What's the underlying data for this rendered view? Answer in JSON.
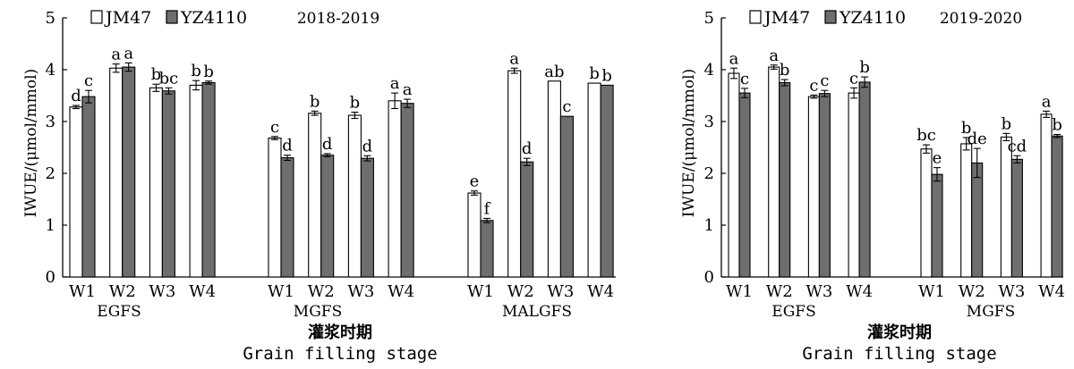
{
  "colors": {
    "jm47": "#ffffff",
    "yz4110": "#6e6e6e",
    "axis": "#000000"
  },
  "chart_data": [
    {
      "type": "bar",
      "title": "2018-2019",
      "ylabel": "IWUE/(μmol/mmol)",
      "xlabel_cn": "灌浆时期",
      "xlabel_en": "Grain filling stage",
      "ylim": [
        0,
        5
      ],
      "yticks": [
        "0",
        "1",
        "2",
        "3",
        "4",
        "5"
      ],
      "legend": [
        "JM47",
        "YZ4110"
      ],
      "groups": [
        {
          "name": "EGFS",
          "categories": [
            "W1",
            "W2",
            "W3",
            "W4"
          ],
          "JM47": [
            3.28,
            4.03,
            3.65,
            3.7
          ],
          "YZ4110": [
            3.48,
            4.05,
            3.59,
            3.75
          ],
          "JM47_err": [
            0.03,
            0.08,
            0.07,
            0.09
          ],
          "YZ4110_err": [
            0.12,
            0.08,
            0.06,
            0.03
          ],
          "JM47_sig": [
            "d",
            "a",
            "b",
            "b"
          ],
          "YZ4110_sig": [
            "c",
            "a",
            "bc",
            "b"
          ]
        },
        {
          "name": "MGFS",
          "categories": [
            "W1",
            "W2",
            "W3",
            "W4"
          ],
          "JM47": [
            2.68,
            3.16,
            3.12,
            3.4
          ],
          "YZ4110": [
            2.3,
            2.35,
            2.29,
            3.35
          ],
          "JM47_err": [
            0.03,
            0.04,
            0.06,
            0.15
          ],
          "YZ4110_err": [
            0.05,
            0.03,
            0.05,
            0.08
          ],
          "JM47_sig": [
            "c",
            "b",
            "b",
            "a"
          ],
          "YZ4110_sig": [
            "d",
            "d",
            "d",
            "a"
          ]
        },
        {
          "name": "MALGFS",
          "categories": [
            "W1",
            "W2",
            "W3",
            "W4"
          ],
          "JM47": [
            1.62,
            3.98,
            3.78,
            3.74
          ],
          "YZ4110": [
            1.09,
            2.22,
            3.1,
            3.7
          ],
          "JM47_err": [
            0.04,
            0.05,
            0.0,
            0.0
          ],
          "YZ4110_err": [
            0.04,
            0.07,
            0.0,
            0.0
          ],
          "JM47_sig": [
            "e",
            "a",
            "ab",
            "b"
          ],
          "YZ4110_sig": [
            "f",
            "d",
            "c",
            "b"
          ]
        }
      ]
    },
    {
      "type": "bar",
      "title": "2019-2020",
      "ylabel": "IWUE/(μmol/mmol)",
      "xlabel_cn": "灌浆时期",
      "xlabel_en": "Grain filling stage",
      "ylim": [
        0,
        5
      ],
      "yticks": [
        "0",
        "1",
        "2",
        "3",
        "4",
        "5"
      ],
      "legend": [
        "JM47",
        "YZ4110"
      ],
      "groups": [
        {
          "name": "EGFS",
          "categories": [
            "W1",
            "W2",
            "W3",
            "W4"
          ],
          "JM47": [
            3.93,
            4.05,
            3.48,
            3.55
          ],
          "YZ4110": [
            3.55,
            3.75,
            3.54,
            3.76
          ],
          "JM47_err": [
            0.1,
            0.04,
            0.03,
            0.1
          ],
          "YZ4110_err": [
            0.09,
            0.06,
            0.06,
            0.1
          ],
          "JM47_sig": [
            "a",
            "a",
            "c",
            "c"
          ],
          "YZ4110_sig": [
            "c",
            "b",
            "c",
            "b"
          ]
        },
        {
          "name": "MGFS",
          "categories": [
            "W1",
            "W2",
            "W3",
            "W4"
          ],
          "JM47": [
            2.47,
            2.57,
            2.7,
            3.14
          ],
          "YZ4110": [
            1.98,
            2.2,
            2.27,
            2.72
          ],
          "JM47_err": [
            0.08,
            0.12,
            0.07,
            0.06
          ],
          "YZ4110_err": [
            0.13,
            0.28,
            0.07,
            0.03
          ],
          "JM47_sig": [
            "bc",
            "b",
            "b",
            "a"
          ],
          "YZ4110_sig": [
            "e",
            "de",
            "cd",
            "b"
          ]
        }
      ]
    }
  ]
}
